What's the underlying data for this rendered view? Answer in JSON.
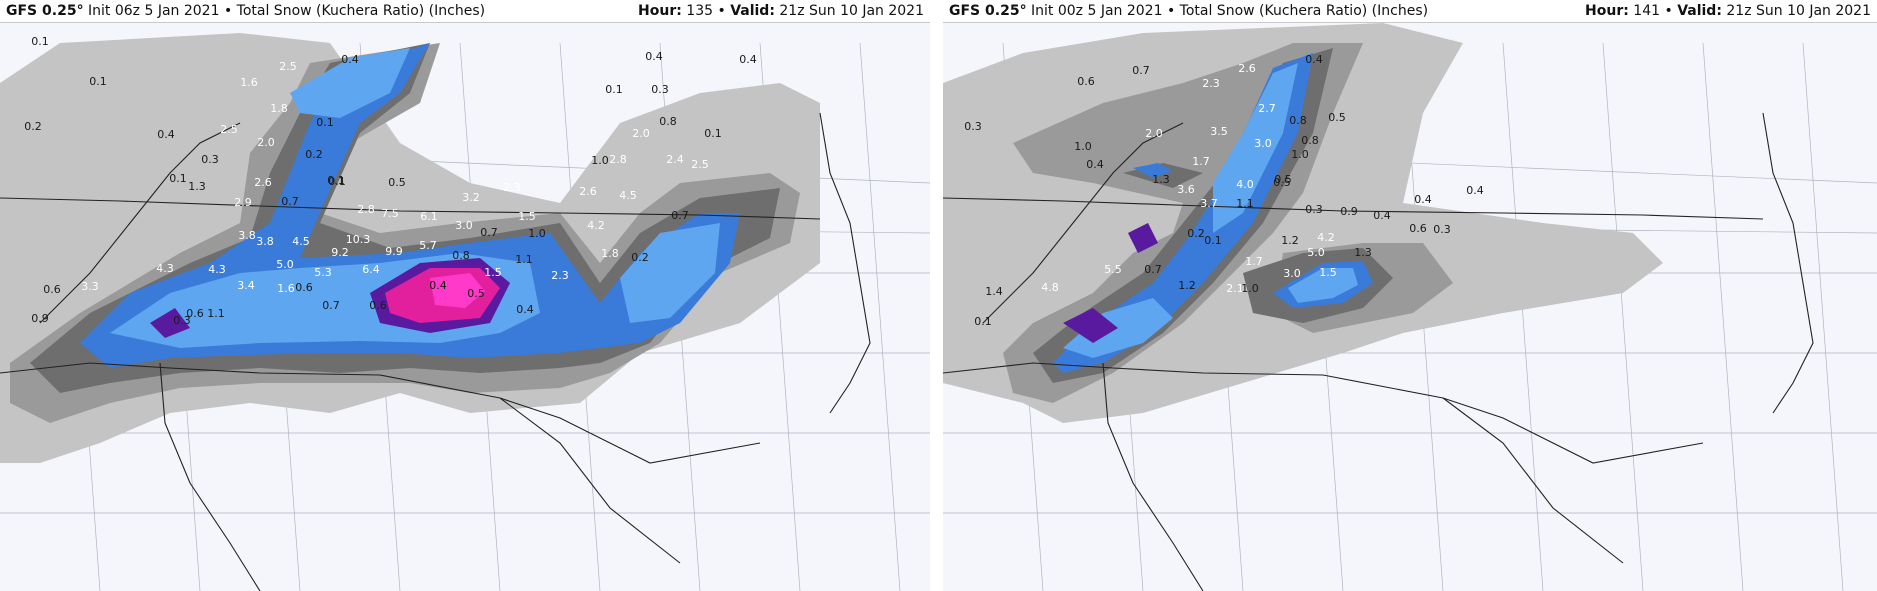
{
  "colors": {
    "background": "#f4f6fb",
    "snow_0_1": "#c4c4c4",
    "snow_0_5": "#9a9a9a",
    "snow_1": "#6e6e6e",
    "snow_2": "#3a7ad8",
    "snow_3": "#5fa6f0",
    "snow_6": "#5a1aa0",
    "snow_9": "#e2209e",
    "snow_10": "#ff3ac8",
    "state_border": "#222222",
    "county_border": "#b0b4c2"
  },
  "panels": [
    {
      "model": "GFS 0.25",
      "degree": "°",
      "init": "Init 06z 5 Jan 2021",
      "bullet": "•",
      "product": "Total Snow (Kuchera Ratio) (Inches)",
      "hour_label": "Hour:",
      "hour": "135",
      "bullet2": "•",
      "valid_label": "Valid:",
      "valid": "21z Sun 10 Jan 2021",
      "labels": [
        "0.1",
        "0.1",
        "0.2",
        "0.4",
        "0.3",
        "0.1",
        "1.3",
        "2.5",
        "1.6",
        "2.5",
        "1.8",
        "2.0",
        "0.1",
        "0.2",
        "0.4",
        "0.1",
        "2.6",
        "2.9",
        "0.7",
        "0.1",
        "0.5",
        "2.8",
        "7.5",
        "6.1",
        "3.2",
        "3.8",
        "3.8",
        "4.5",
        "10.3",
        "9.2",
        "9.9",
        "5.7",
        "3.0",
        "4.3",
        "4.3",
        "5.0",
        "5.3",
        "6.4",
        "0.8",
        "3.3",
        "0.6",
        "3.4",
        "1.6",
        "0.6",
        "0.4",
        "0.9",
        "0.3",
        "0.6",
        "1.1",
        "0.7",
        "0.6",
        "2.6",
        "4.5",
        "2.0",
        "2.8",
        "2.4",
        "2.5",
        "1.0",
        "2.3",
        "1.5",
        "1.0",
        "4.2",
        "1.8",
        "0.7",
        "2.3",
        "1.5",
        "0.5",
        "0.4",
        "1.1",
        "0.7",
        "0.2",
        "0.4",
        "0.1",
        "0.3",
        "0.8",
        "0.4",
        "0.1"
      ]
    },
    {
      "model": "GFS 0.25",
      "degree": "°",
      "init": "Init 00z 5 Jan 2021",
      "bullet": "•",
      "product": "Total Snow (Kuchera Ratio) (Inches)",
      "hour_label": "Hour:",
      "hour": "141",
      "bullet2": "•",
      "valid_label": "Valid:",
      "valid": "21z Sun 10 Jan 2021",
      "labels": [
        "0.7",
        "0.6",
        "2.6",
        "0.4",
        "0.3",
        "2.3",
        "1.0",
        "2.0",
        "3.5",
        "2.7",
        "0.8",
        "0.5",
        "3.0",
        "1.0",
        "0.4",
        "0.5",
        "1.7",
        "1.3",
        "3.6",
        "4.0",
        "0.5",
        "3.7",
        "1.1",
        "0.8",
        "0.3",
        "0.9",
        "0.4",
        "0.4",
        "0.4",
        "0.2",
        "0.1",
        "0.6",
        "0.3",
        "1.2",
        "4.2",
        "1.7",
        "5.0",
        "1.3",
        "4.8",
        "5.5",
        "0.7",
        "3.0",
        "1.5",
        "1.4",
        "1.2",
        "2.1",
        "1.0",
        "0.1"
      ]
    }
  ]
}
